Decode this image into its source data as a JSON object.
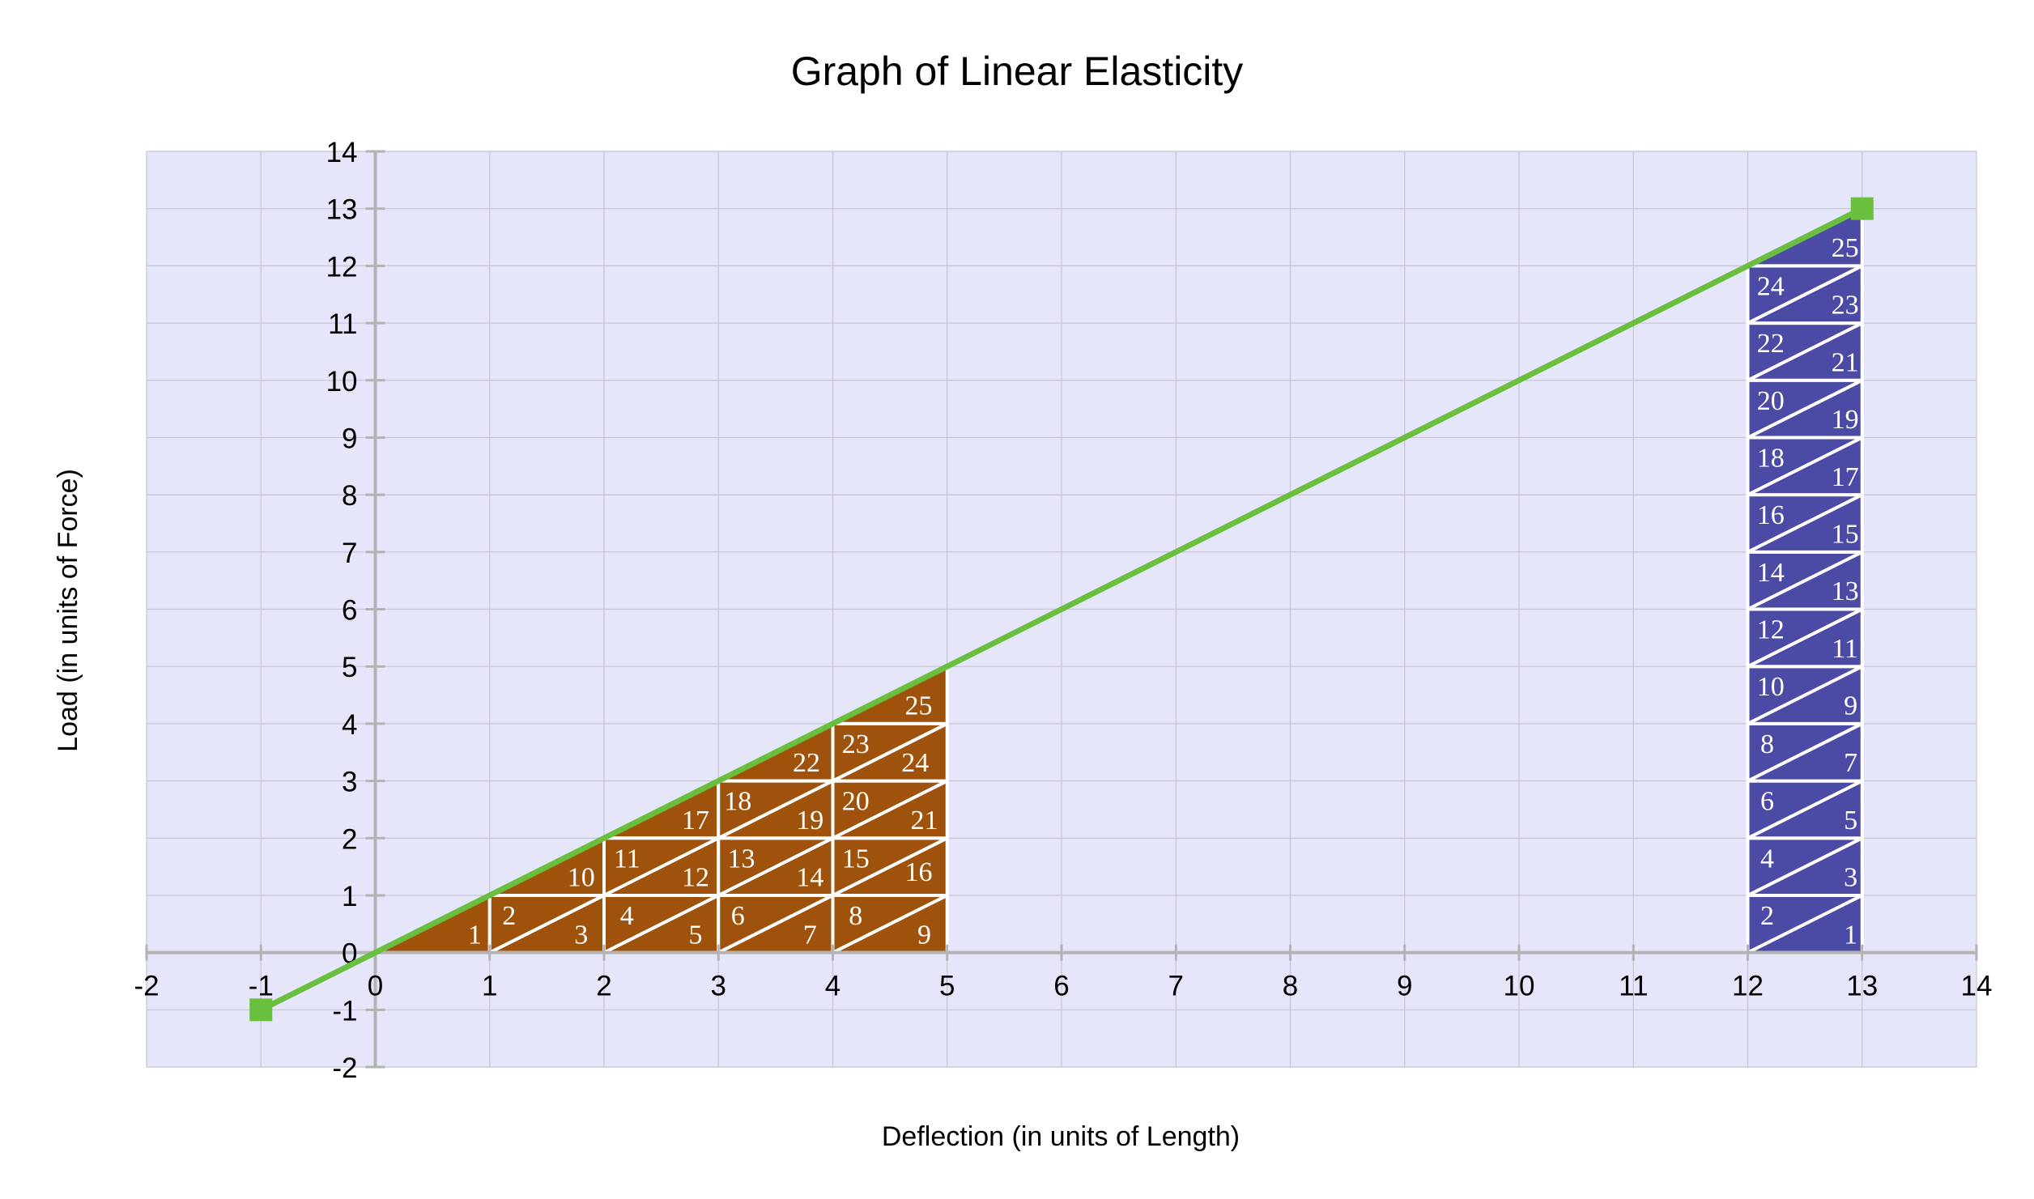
{
  "chart_data": {
    "type": "line",
    "title": "Graph of Linear Elasticity",
    "xlabel": "Deflection (in units of Length)",
    "ylabel": "Load (in units of Force)",
    "xlim": [
      -2,
      14
    ],
    "ylim": [
      -2,
      14
    ],
    "x_ticks": [
      "-2",
      "-1",
      "0",
      "1",
      "2",
      "3",
      "4",
      "5",
      "6",
      "7",
      "8",
      "9",
      "10",
      "11",
      "12",
      "13",
      "14"
    ],
    "y_ticks": [
      "-2",
      "-1",
      "0",
      "1",
      "2",
      "3",
      "4",
      "5",
      "6",
      "7",
      "8",
      "9",
      "10",
      "11",
      "12",
      "13",
      "14"
    ],
    "grid": true,
    "legend": "none",
    "series": [
      {
        "x": [
          -1,
          13
        ],
        "y": [
          -1,
          13
        ],
        "markers": "square-endpoints"
      }
    ],
    "annotations": {
      "brown_region": {
        "description_range_x": [
          0,
          5
        ],
        "triangles": [
          {
            "label": "1",
            "x": 0.87,
            "y": 0.33
          },
          {
            "label": "2",
            "x": 1.17,
            "y": 0.66
          },
          {
            "label": "3",
            "x": 1.8,
            "y": 0.33
          },
          {
            "label": "4",
            "x": 2.2,
            "y": 0.66
          },
          {
            "label": "5",
            "x": 2.8,
            "y": 0.33
          },
          {
            "label": "6",
            "x": 3.17,
            "y": 0.66
          },
          {
            "label": "7",
            "x": 3.8,
            "y": 0.33
          },
          {
            "label": "8",
            "x": 4.2,
            "y": 0.66
          },
          {
            "label": "9",
            "x": 4.8,
            "y": 0.33
          },
          {
            "label": "10",
            "x": 1.8,
            "y": 1.33
          },
          {
            "label": "11",
            "x": 2.2,
            "y": 1.66
          },
          {
            "label": "12",
            "x": 2.8,
            "y": 1.33
          },
          {
            "label": "13",
            "x": 3.2,
            "y": 1.66
          },
          {
            "label": "14",
            "x": 3.8,
            "y": 1.33
          },
          {
            "label": "15",
            "x": 4.2,
            "y": 1.66
          },
          {
            "label": "16",
            "x": 4.75,
            "y": 1.42
          },
          {
            "label": "17",
            "x": 2.8,
            "y": 2.33
          },
          {
            "label": "18",
            "x": 3.17,
            "y": 2.66
          },
          {
            "label": "19",
            "x": 3.8,
            "y": 2.33
          },
          {
            "label": "20",
            "x": 4.2,
            "y": 2.66
          },
          {
            "label": "21",
            "x": 4.8,
            "y": 2.33
          },
          {
            "label": "22",
            "x": 3.77,
            "y": 3.33
          },
          {
            "label": "23",
            "x": 4.2,
            "y": 3.66
          },
          {
            "label": "24",
            "x": 4.72,
            "y": 3.33
          },
          {
            "label": "25",
            "x": 4.75,
            "y": 4.33
          }
        ],
        "color": "#9e520b"
      },
      "blue_region": {
        "description_range_x": [
          12,
          13
        ],
        "triangles": [
          {
            "label": "1",
            "x": 12.9,
            "y": 0.33
          },
          {
            "label": "2",
            "x": 12.17,
            "y": 0.66
          },
          {
            "label": "3",
            "x": 12.9,
            "y": 1.33
          },
          {
            "label": "4",
            "x": 12.17,
            "y": 1.66
          },
          {
            "label": "5",
            "x": 12.9,
            "y": 2.33
          },
          {
            "label": "6",
            "x": 12.17,
            "y": 2.66
          },
          {
            "label": "7",
            "x": 12.9,
            "y": 3.33
          },
          {
            "label": "8",
            "x": 12.17,
            "y": 3.66
          },
          {
            "label": "9",
            "x": 12.9,
            "y": 4.33
          },
          {
            "label": "10",
            "x": 12.2,
            "y": 4.66
          },
          {
            "label": "11",
            "x": 12.85,
            "y": 5.33
          },
          {
            "label": "12",
            "x": 12.2,
            "y": 5.66
          },
          {
            "label": "13",
            "x": 12.85,
            "y": 6.33
          },
          {
            "label": "14",
            "x": 12.2,
            "y": 6.66
          },
          {
            "label": "15",
            "x": 12.85,
            "y": 7.33
          },
          {
            "label": "16",
            "x": 12.2,
            "y": 7.66
          },
          {
            "label": "17",
            "x": 12.85,
            "y": 8.33
          },
          {
            "label": "18",
            "x": 12.2,
            "y": 8.66
          },
          {
            "label": "19",
            "x": 12.85,
            "y": 9.33
          },
          {
            "label": "20",
            "x": 12.2,
            "y": 9.66
          },
          {
            "label": "21",
            "x": 12.85,
            "y": 10.33
          },
          {
            "label": "22",
            "x": 12.2,
            "y": 10.66
          },
          {
            "label": "23",
            "x": 12.85,
            "y": 11.33
          },
          {
            "label": "24",
            "x": 12.2,
            "y": 11.66
          },
          {
            "label": "25",
            "x": 12.85,
            "y": 12.33
          }
        ],
        "color": "#4b4ba5"
      }
    },
    "colors": {
      "plot_background": "#e6e6fa",
      "grid": "#c4c4d4",
      "axis": "#b3b3b3",
      "line": "#6abf3f",
      "brown": "#9e520b",
      "blue": "#4b4ba5",
      "divider": "#ffffff"
    }
  }
}
